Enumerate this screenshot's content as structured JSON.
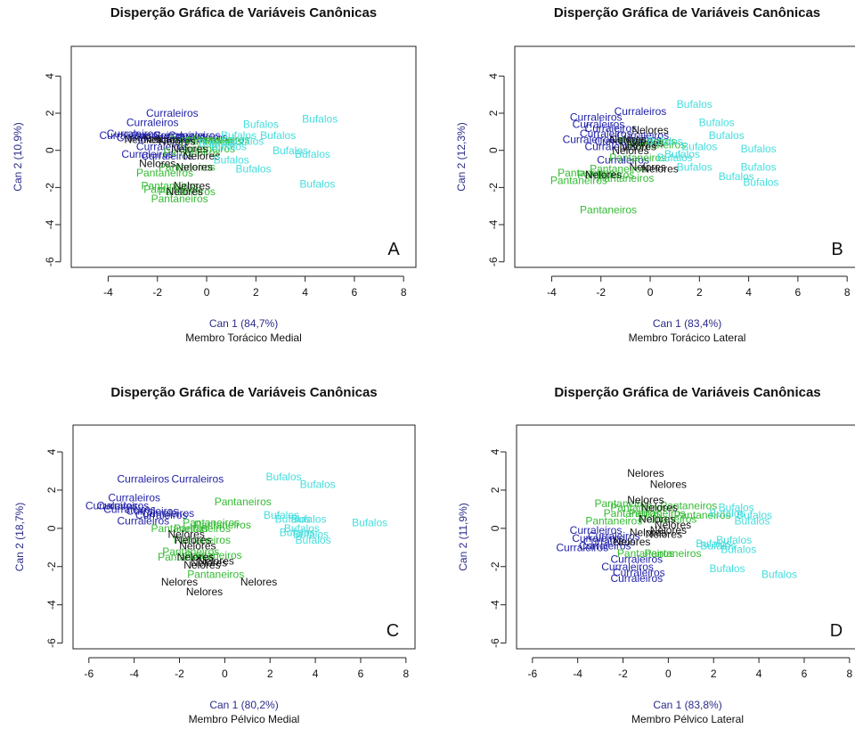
{
  "chart_data": [
    {
      "type": "scatter",
      "title": "Disperção Gráfica de Variáveis Canônicas",
      "xlabel": "Can 1 (84,7%)",
      "subtitle": "Membro Torácico Medial",
      "ylabel": "Can 2 (10,9%)",
      "panel_letter": "A",
      "xlim": [
        -5.5,
        8.5
      ],
      "ylim": [
        -6.3,
        5.6
      ],
      "xticks": [
        -4,
        -2,
        0,
        2,
        4,
        6,
        8
      ],
      "yticks": [
        -6,
        -4,
        -2,
        0,
        2,
        4
      ],
      "series": [
        {
          "name": "Curraleiros",
          "color": "#2222aa",
          "points": [
            [
              -1.4,
              2.0
            ],
            [
              -2.2,
              1.5
            ],
            [
              -3.0,
              0.9
            ],
            [
              -3.3,
              0.8
            ],
            [
              -2.6,
              0.7
            ],
            [
              -2.0,
              0.8
            ],
            [
              -1.1,
              0.8
            ],
            [
              -0.5,
              0.8
            ],
            [
              -2.4,
              -0.2
            ],
            [
              -1.6,
              -0.3
            ],
            [
              -1.0,
              0.6
            ],
            [
              -0.2,
              0.7
            ],
            [
              -1.8,
              0.2
            ]
          ]
        },
        {
          "name": "Pantaneiros",
          "color": "#33bb33",
          "points": [
            [
              -1.7,
              -1.2
            ],
            [
              -1.5,
              -1.9
            ],
            [
              -1.4,
              -2.1
            ],
            [
              -1.1,
              -2.6
            ],
            [
              -0.8,
              -2.2
            ],
            [
              -0.4,
              0.6
            ],
            [
              0.3,
              0.5
            ],
            [
              -0.8,
              -0.9
            ],
            [
              0.0,
              0.1
            ],
            [
              -0.6,
              -0.1
            ],
            [
              0.6,
              0.6
            ]
          ]
        },
        {
          "name": "Nelores",
          "color": "#111111",
          "points": [
            [
              -2.6,
              0.6
            ],
            [
              -2.0,
              -0.7
            ],
            [
              -0.5,
              -0.9
            ],
            [
              -0.6,
              -1.9
            ],
            [
              -0.9,
              -2.2
            ],
            [
              -1.8,
              0.6
            ],
            [
              -0.2,
              -0.3
            ],
            [
              -0.7,
              0.1
            ],
            [
              -1.2,
              0.5
            ]
          ]
        },
        {
          "name": "Bufalos",
          "color": "#44dddd",
          "points": [
            [
              2.2,
              1.4
            ],
            [
              4.6,
              1.7
            ],
            [
              2.9,
              0.8
            ],
            [
              1.3,
              0.8
            ],
            [
              0.9,
              0.2
            ],
            [
              3.4,
              0.0
            ],
            [
              4.3,
              -0.2
            ],
            [
              1.9,
              -1.0
            ],
            [
              4.5,
              -1.8
            ],
            [
              1.0,
              -0.5
            ],
            [
              0.4,
              0.4
            ],
            [
              1.6,
              0.5
            ]
          ]
        }
      ]
    },
    {
      "type": "scatter",
      "title": "Disperção Gráfica de Variáveis Canônicas",
      "xlabel": "Can 1 (83,4%)",
      "subtitle": "Membro Torácico Lateral",
      "ylabel": "Can 2 (12,3%)",
      "panel_letter": "B",
      "xlim": [
        -5.5,
        8.5
      ],
      "ylim": [
        -6.3,
        5.6
      ],
      "xticks": [
        -4,
        -2,
        0,
        2,
        4,
        6,
        8
      ],
      "yticks": [
        -6,
        -4,
        -2,
        0,
        2,
        4
      ],
      "series": [
        {
          "name": "Curraleiros",
          "color": "#2222aa",
          "points": [
            [
              -0.4,
              2.1
            ],
            [
              -2.2,
              1.8
            ],
            [
              -2.1,
              1.4
            ],
            [
              -1.6,
              1.2
            ],
            [
              -2.5,
              0.6
            ],
            [
              -1.2,
              0.5
            ],
            [
              -1.8,
              0.9
            ],
            [
              -0.6,
              0.6
            ],
            [
              -1.1,
              -0.5
            ],
            [
              -0.3,
              0.8
            ],
            [
              -1.6,
              0.2
            ]
          ]
        },
        {
          "name": "Pantaneiros",
          "color": "#33bb33",
          "points": [
            [
              -1.7,
              -3.2
            ],
            [
              -2.6,
              -1.2
            ],
            [
              -2.9,
              -1.6
            ],
            [
              -1.8,
              -1.3
            ],
            [
              -1.0,
              -1.5
            ],
            [
              -0.5,
              -0.4
            ],
            [
              0.3,
              0.3
            ],
            [
              -1.3,
              -1.0
            ],
            [
              -0.1,
              0.5
            ]
          ]
        },
        {
          "name": "Nelores",
          "color": "#111111",
          "points": [
            [
              0.0,
              1.1
            ],
            [
              -0.5,
              0.2
            ],
            [
              -0.8,
              0.0
            ],
            [
              -0.1,
              -0.9
            ],
            [
              0.4,
              -1.0
            ],
            [
              -1.9,
              -1.3
            ],
            [
              -0.2,
              0.4
            ],
            [
              -0.9,
              0.6
            ]
          ]
        },
        {
          "name": "Bufalos",
          "color": "#44dddd",
          "points": [
            [
              1.8,
              2.5
            ],
            [
              2.7,
              1.5
            ],
            [
              3.1,
              0.8
            ],
            [
              2.0,
              0.2
            ],
            [
              4.4,
              0.1
            ],
            [
              1.3,
              -0.2
            ],
            [
              4.4,
              -0.9
            ],
            [
              1.8,
              -0.9
            ],
            [
              3.5,
              -1.4
            ],
            [
              4.5,
              -1.7
            ],
            [
              0.6,
              0.5
            ],
            [
              1.0,
              -0.4
            ]
          ]
        }
      ]
    },
    {
      "type": "scatter",
      "title": "Disperção Gráfica de Variáveis Canônicas",
      "xlabel": "Can 1 (80,2%)",
      "subtitle": "Membro Pélvico Medial",
      "ylabel": "Can 2 (18,7%)",
      "panel_letter": "C",
      "xlim": [
        -6.7,
        8.4
      ],
      "ylim": [
        -6.3,
        5.4
      ],
      "xticks": [
        -6,
        -4,
        -2,
        0,
        2,
        4,
        6,
        8
      ],
      "yticks": [
        -6,
        -4,
        -2,
        0,
        2,
        4
      ],
      "series": [
        {
          "name": "Curraleiros",
          "color": "#2222aa",
          "points": [
            [
              -3.6,
              2.6
            ],
            [
              -1.2,
              2.6
            ],
            [
              -4.0,
              1.6
            ],
            [
              -5.0,
              1.2
            ],
            [
              -4.5,
              1.2
            ],
            [
              -3.2,
              0.9
            ],
            [
              -2.5,
              0.8
            ],
            [
              -3.6,
              0.4
            ],
            [
              -2.8,
              0.7
            ],
            [
              -4.2,
              1.0
            ]
          ]
        },
        {
          "name": "Pantaneiros",
          "color": "#33bb33",
          "points": [
            [
              0.8,
              1.4
            ],
            [
              -0.6,
              0.3
            ],
            [
              -1.0,
              0.0
            ],
            [
              -2.0,
              0.0
            ],
            [
              -0.1,
              0.2
            ],
            [
              -1.5,
              -1.2
            ],
            [
              -1.7,
              -1.5
            ],
            [
              -0.4,
              -2.4
            ],
            [
              -1.0,
              -0.6
            ],
            [
              -0.5,
              -1.4
            ]
          ]
        },
        {
          "name": "Nelores",
          "color": "#111111",
          "points": [
            [
              -1.7,
              -0.3
            ],
            [
              -1.2,
              -0.9
            ],
            [
              -1.3,
              -1.5
            ],
            [
              -0.7,
              -1.8
            ],
            [
              -0.4,
              -1.7
            ],
            [
              -1.0,
              -1.9
            ],
            [
              -2.0,
              -2.8
            ],
            [
              -0.9,
              -3.3
            ],
            [
              1.5,
              -2.8
            ],
            [
              -1.4,
              -0.6
            ]
          ]
        },
        {
          "name": "Bufalos",
          "color": "#44dddd",
          "points": [
            [
              2.6,
              2.7
            ],
            [
              4.1,
              2.3
            ],
            [
              2.5,
              0.7
            ],
            [
              3.7,
              0.5
            ],
            [
              6.4,
              0.3
            ],
            [
              3.4,
              0.0
            ],
            [
              3.8,
              -0.3
            ],
            [
              3.9,
              -0.6
            ],
            [
              3.0,
              0.5
            ],
            [
              3.2,
              -0.2
            ]
          ]
        }
      ]
    },
    {
      "type": "scatter",
      "title": "Disperção Gráfica de Variáveis Canônicas",
      "xlabel": "Can 1 (83,8%)",
      "subtitle": "Membro Pélvico Lateral",
      "ylabel": "Can 2 (11,9%)",
      "panel_letter": "D",
      "xlim": [
        -6.7,
        8.4
      ],
      "ylim": [
        -6.3,
        5.4
      ],
      "xticks": [
        -6,
        -4,
        -2,
        0,
        2,
        4,
        6,
        8
      ],
      "yticks": [
        -6,
        -4,
        -2,
        0,
        2,
        4
      ],
      "series": [
        {
          "name": "Curraleiros",
          "color": "#2222aa",
          "points": [
            [
              -3.2,
              -0.1
            ],
            [
              -3.1,
              -0.5
            ],
            [
              -3.8,
              -1.0
            ],
            [
              -2.6,
              -0.7
            ],
            [
              -1.4,
              -1.6
            ],
            [
              -1.8,
              -2.0
            ],
            [
              -1.3,
              -2.3
            ],
            [
              -1.4,
              -2.6
            ],
            [
              -2.4,
              -0.4
            ],
            [
              -2.8,
              -0.9
            ]
          ]
        },
        {
          "name": "Pantaneiros",
          "color": "#33bb33",
          "points": [
            [
              -2.0,
              1.3
            ],
            [
              -1.3,
              1.1
            ],
            [
              -2.4,
              0.4
            ],
            [
              0.9,
              1.2
            ],
            [
              1.5,
              0.7
            ],
            [
              0.0,
              0.5
            ],
            [
              -0.5,
              0.8
            ],
            [
              -1.0,
              -1.3
            ],
            [
              0.2,
              -1.3
            ],
            [
              -1.6,
              0.8
            ]
          ]
        },
        {
          "name": "Nelores",
          "color": "#111111",
          "points": [
            [
              -1.0,
              2.9
            ],
            [
              0.0,
              2.3
            ],
            [
              -1.0,
              1.5
            ],
            [
              -0.4,
              1.1
            ],
            [
              0.2,
              0.2
            ],
            [
              -0.9,
              -0.2
            ],
            [
              -0.2,
              -0.3
            ],
            [
              -1.6,
              -0.7
            ],
            [
              -0.5,
              0.5
            ],
            [
              0.0,
              -0.1
            ]
          ]
        },
        {
          "name": "Bufalos",
          "color": "#44dddd",
          "points": [
            [
              3.0,
              1.1
            ],
            [
              3.8,
              0.7
            ],
            [
              2.6,
              0.8
            ],
            [
              3.7,
              0.4
            ],
            [
              2.2,
              -0.9
            ],
            [
              2.9,
              -0.6
            ],
            [
              3.1,
              -1.1
            ],
            [
              2.6,
              -2.1
            ],
            [
              4.9,
              -2.4
            ],
            [
              2.0,
              -0.8
            ]
          ]
        }
      ]
    }
  ]
}
